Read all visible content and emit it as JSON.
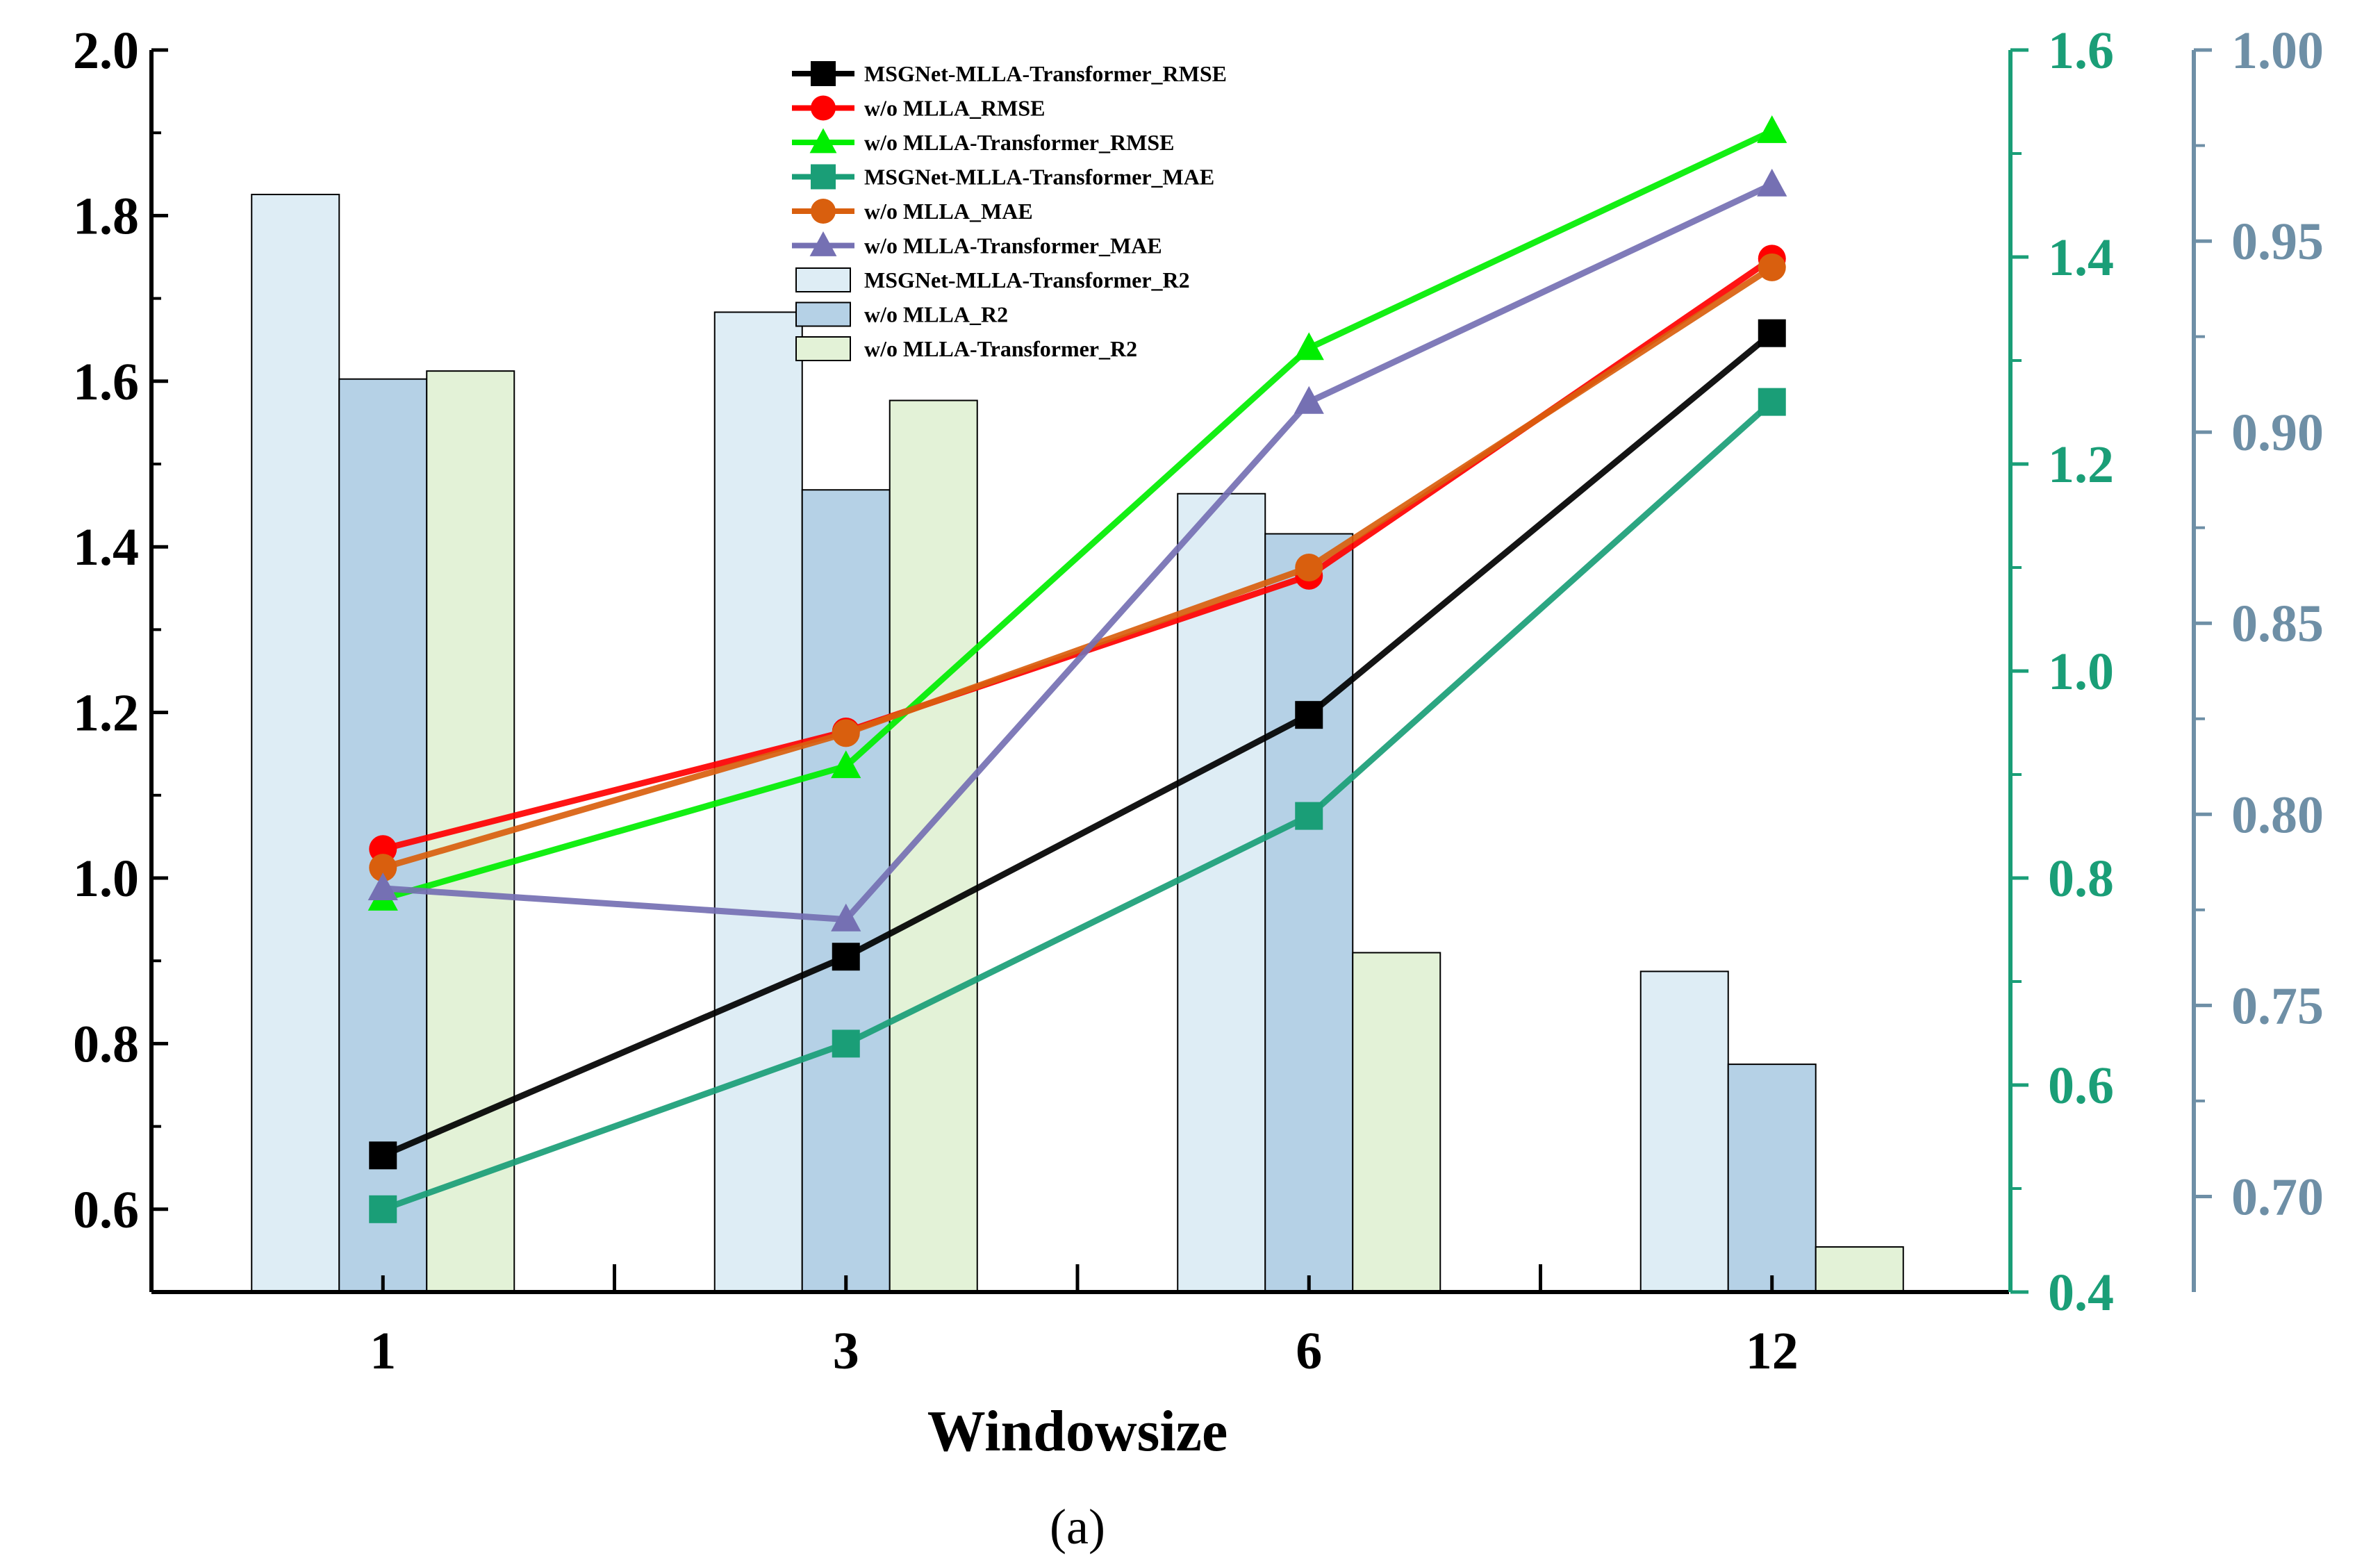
{
  "chart_data": {
    "type": "bar+line",
    "categories": [
      "1",
      "3",
      "6",
      "12"
    ],
    "xlabel": "Windowsize",
    "caption": "(a)",
    "axes": {
      "left": {
        "ylim": [
          0.5,
          2.0
        ],
        "ticks": [
          "0.6",
          "0.8",
          "1.0",
          "1.2",
          "1.4",
          "1.6",
          "1.8",
          "2.0"
        ],
        "tick_values": [
          0.6,
          0.8,
          1.0,
          1.2,
          1.4,
          1.6,
          1.8,
          2.0
        ],
        "color": "#000000"
      },
      "right1": {
        "ylim": [
          0.4,
          1.6
        ],
        "ticks": [
          "0.4",
          "0.6",
          "0.8",
          "1.0",
          "1.2",
          "1.4",
          "1.6"
        ],
        "tick_values": [
          0.4,
          0.6,
          0.8,
          1.0,
          1.2,
          1.4,
          1.6
        ],
        "color": "#1a9e77"
      },
      "right2": {
        "ylim": [
          0.675,
          1.0
        ],
        "ticks": [
          "0.70",
          "0.75",
          "0.80",
          "0.85",
          "0.90",
          "0.95",
          "1.00"
        ],
        "tick_values": [
          0.7,
          0.75,
          0.8,
          0.85,
          0.9,
          0.95,
          1.0
        ],
        "color": "#6e8fa6"
      }
    },
    "bar_series": [
      {
        "name": "MSGNet-MLLA-Transformer_R2",
        "axis": "right2",
        "color": "#deedf5",
        "values": [
          0.9622,
          0.9314,
          0.8839,
          0.7589
        ]
      },
      {
        "name": "w/o MLLA_R2",
        "axis": "right2",
        "color": "#b5d1e6",
        "values": [
          0.9139,
          0.8849,
          0.8734,
          0.7346
        ]
      },
      {
        "name": "w/o MLLA-Transformer_R2",
        "axis": "right2",
        "color": "#e3f2d7",
        "values": [
          0.916,
          0.9083,
          0.7638,
          0.6868
        ]
      }
    ],
    "line_series": [
      {
        "name": "MSGNet-MLLA-Transformer_RMSE",
        "axis": "left",
        "color": "#000000",
        "marker": "square",
        "values": [
          0.665,
          0.905,
          1.197,
          1.658
        ]
      },
      {
        "name": "w/o MLLA_RMSE",
        "axis": "left",
        "color": "#ff0000",
        "marker": "circle",
        "values": [
          1.035,
          1.177,
          1.365,
          1.748
        ]
      },
      {
        "name": "w/o MLLA-Transformer_RMSE",
        "axis": "left",
        "color": "#00ee00",
        "marker": "triangle",
        "values": [
          0.975,
          1.135,
          1.64,
          1.902
        ]
      },
      {
        "name": "MSGNet-MLLA-Transformer_MAE",
        "axis": "right1",
        "color": "#1a9e77",
        "marker": "square",
        "values": [
          0.48,
          0.64,
          0.86,
          1.26
        ]
      },
      {
        "name": "w/o MLLA_MAE",
        "axis": "right1",
        "color": "#d95f0e",
        "marker": "circle",
        "values": [
          0.81,
          0.94,
          1.1,
          1.39
        ]
      },
      {
        "name": "w/o MLLA-Transformer_MAE",
        "axis": "right1",
        "color": "#7570b3",
        "marker": "triangle",
        "values": [
          0.79,
          0.76,
          1.26,
          1.47
        ]
      }
    ],
    "legend_position": "top-center"
  }
}
